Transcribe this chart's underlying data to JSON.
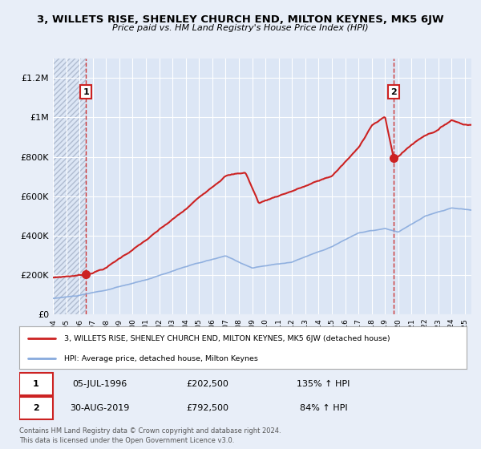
{
  "title": "3, WILLETS RISE, SHENLEY CHURCH END, MILTON KEYNES, MK5 6JW",
  "subtitle": "Price paid vs. HM Land Registry's House Price Index (HPI)",
  "background_color": "#e8eef8",
  "plot_bg_color": "#dce6f5",
  "red_line_color": "#cc2222",
  "blue_line_color": "#88aadd",
  "dashed_vline_color": "#cc3333",
  "xlim": [
    1994.0,
    2025.5
  ],
  "ylim": [
    0,
    1300000
  ],
  "yticks": [
    0,
    200000,
    400000,
    600000,
    800000,
    1000000,
    1200000
  ],
  "ytick_labels": [
    "£0",
    "£200K",
    "£400K",
    "£600K",
    "£800K",
    "£1M",
    "£1.2M"
  ],
  "xtick_years": [
    1994,
    1995,
    1996,
    1997,
    1998,
    1999,
    2000,
    2001,
    2002,
    2003,
    2004,
    2005,
    2006,
    2007,
    2008,
    2009,
    2010,
    2011,
    2012,
    2013,
    2014,
    2015,
    2016,
    2017,
    2018,
    2019,
    2020,
    2021,
    2022,
    2023,
    2024,
    2025
  ],
  "point1_x": 1996.5,
  "point1_y": 202500,
  "point1_label": "1",
  "point1_date": "05-JUL-1996",
  "point1_price": "£202,500",
  "point1_hpi": "135% ↑ HPI",
  "point2_x": 2019.67,
  "point2_y": 792500,
  "point2_label": "2",
  "point2_date": "30-AUG-2019",
  "point2_price": "£792,500",
  "point2_hpi": "84% ↑ HPI",
  "legend_label1": "3, WILLETS RISE, SHENLEY CHURCH END, MILTON KEYNES, MK5 6JW (detached house)",
  "legend_label2": "HPI: Average price, detached house, Milton Keynes",
  "footer1": "Contains HM Land Registry data © Crown copyright and database right 2024.",
  "footer2": "This data is licensed under the Open Government Licence v3.0.",
  "blue_knots": [
    1994,
    1996,
    1998,
    2001,
    2004,
    2007,
    2009,
    2012,
    2015,
    2017,
    2019,
    2020,
    2022,
    2024,
    2025.5
  ],
  "blue_vals": [
    80000,
    95000,
    120000,
    170000,
    240000,
    290000,
    230000,
    260000,
    340000,
    410000,
    430000,
    410000,
    490000,
    530000,
    520000
  ],
  "red_knots": [
    1994,
    1996.5,
    1998,
    2001,
    2004,
    2007,
    2008.5,
    2009.5,
    2011,
    2013,
    2015,
    2017,
    2018,
    2019.0,
    2019.67,
    2020,
    2021,
    2022,
    2023,
    2024,
    2025,
    2025.5
  ],
  "red_vals": [
    185000,
    202500,
    240000,
    380000,
    530000,
    710000,
    725000,
    570000,
    610000,
    660000,
    710000,
    850000,
    970000,
    1010000,
    792500,
    810000,
    870000,
    920000,
    950000,
    1000000,
    980000,
    980000
  ]
}
